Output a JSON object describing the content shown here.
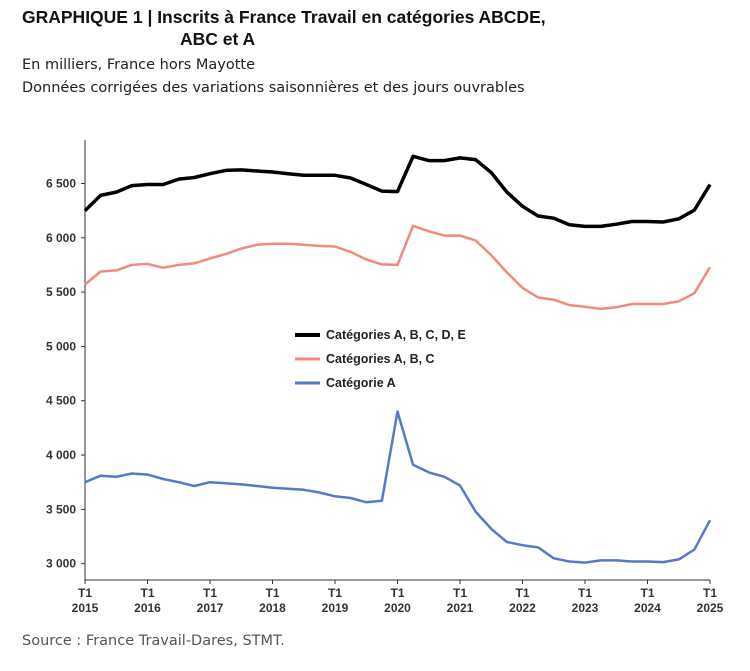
{
  "header": {
    "title_line1": "GRAPHIQUE 1 | Inscrits à France Travail en catégories ABCDE,",
    "title_line2": "ABC et A",
    "subtitle1": "En milliers, France hors Mayotte",
    "subtitle2": "Données corrigées des variations saisonnières et des jours ouvrables"
  },
  "footer": {
    "source": "Source : France Travail-Dares, STMT."
  },
  "chart_data": {
    "type": "line",
    "title": "GRAPHIQUE 1 | Inscrits à France Travail en catégories ABCDE, ABC et A",
    "xlabel": "",
    "ylabel": "",
    "ylim": [
      2850,
      6900
    ],
    "xlim": [
      2015.0,
      2025.0
    ],
    "grid": false,
    "legend_position": "center",
    "x_ticks": [
      {
        "x": 2015,
        "line1": "T1",
        "line2": "2015"
      },
      {
        "x": 2016,
        "line1": "T1",
        "line2": "2016"
      },
      {
        "x": 2017,
        "line1": "T1",
        "line2": "2017"
      },
      {
        "x": 2018,
        "line1": "T1",
        "line2": "2018"
      },
      {
        "x": 2019,
        "line1": "T1",
        "line2": "2019"
      },
      {
        "x": 2020,
        "line1": "T1",
        "line2": "2020"
      },
      {
        "x": 2021,
        "line1": "T1",
        "line2": "2021"
      },
      {
        "x": 2022,
        "line1": "T1",
        "line2": "2022"
      },
      {
        "x": 2023,
        "line1": "T1",
        "line2": "2023"
      },
      {
        "x": 2024,
        "line1": "T1",
        "line2": "2024"
      },
      {
        "x": 2025,
        "line1": "T1",
        "line2": "2025"
      }
    ],
    "y_ticks": [
      {
        "value": 3000,
        "label": "3 000"
      },
      {
        "value": 3500,
        "label": "3 500"
      },
      {
        "value": 4000,
        "label": "4 000"
      },
      {
        "value": 4500,
        "label": "4 500"
      },
      {
        "value": 5000,
        "label": "5 000"
      },
      {
        "value": 5500,
        "label": "5 500"
      },
      {
        "value": 6000,
        "label": "6 000"
      },
      {
        "value": 6500,
        "label": "6 500"
      }
    ],
    "x": [
      2015.0,
      2015.25,
      2015.5,
      2015.75,
      2016.0,
      2016.25,
      2016.5,
      2016.75,
      2017.0,
      2017.25,
      2017.5,
      2017.75,
      2018.0,
      2018.25,
      2018.5,
      2018.75,
      2019.0,
      2019.25,
      2019.5,
      2019.75,
      2020.0,
      2020.25,
      2020.5,
      2020.75,
      2021.0,
      2021.25,
      2021.5,
      2021.75,
      2022.0,
      2022.25,
      2022.5,
      2022.75,
      2023.0,
      2023.25,
      2023.5,
      2023.75,
      2024.0,
      2024.25,
      2024.5,
      2024.75,
      2025.0
    ],
    "series": [
      {
        "name": "Catégories A, B, C, D, E",
        "color": "#000000",
        "values": [
          6250,
          6390,
          6420,
          6480,
          6490,
          6490,
          6540,
          6555,
          6590,
          6620,
          6625,
          6615,
          6605,
          6590,
          6575,
          6575,
          6575,
          6550,
          6490,
          6430,
          6425,
          6750,
          6710,
          6710,
          6735,
          6720,
          6600,
          6420,
          6290,
          6200,
          6180,
          6120,
          6105,
          6105,
          6125,
          6150,
          6150,
          6145,
          6175,
          6255,
          6490
        ]
      },
      {
        "name": "Catégories A, B, C",
        "color": "#f08a80",
        "values": [
          5570,
          5690,
          5700,
          5750,
          5760,
          5725,
          5750,
          5765,
          5810,
          5850,
          5900,
          5935,
          5945,
          5945,
          5935,
          5925,
          5920,
          5870,
          5800,
          5755,
          5750,
          6110,
          6060,
          6020,
          6020,
          5975,
          5840,
          5680,
          5540,
          5450,
          5430,
          5380,
          5365,
          5345,
          5360,
          5390,
          5390,
          5390,
          5415,
          5490,
          5730
        ]
      },
      {
        "name": "Catégorie A",
        "color": "#5878c8",
        "values": [
          3750,
          3810,
          3800,
          3830,
          3820,
          3780,
          3750,
          3715,
          3750,
          3740,
          3730,
          3715,
          3700,
          3690,
          3680,
          3655,
          3620,
          3605,
          3565,
          3580,
          4400,
          3910,
          3840,
          3800,
          3720,
          3480,
          3320,
          3200,
          3170,
          3150,
          3050,
          3020,
          3010,
          3030,
          3030,
          3020,
          3020,
          3015,
          3040,
          3130,
          3400
        ]
      }
    ]
  }
}
